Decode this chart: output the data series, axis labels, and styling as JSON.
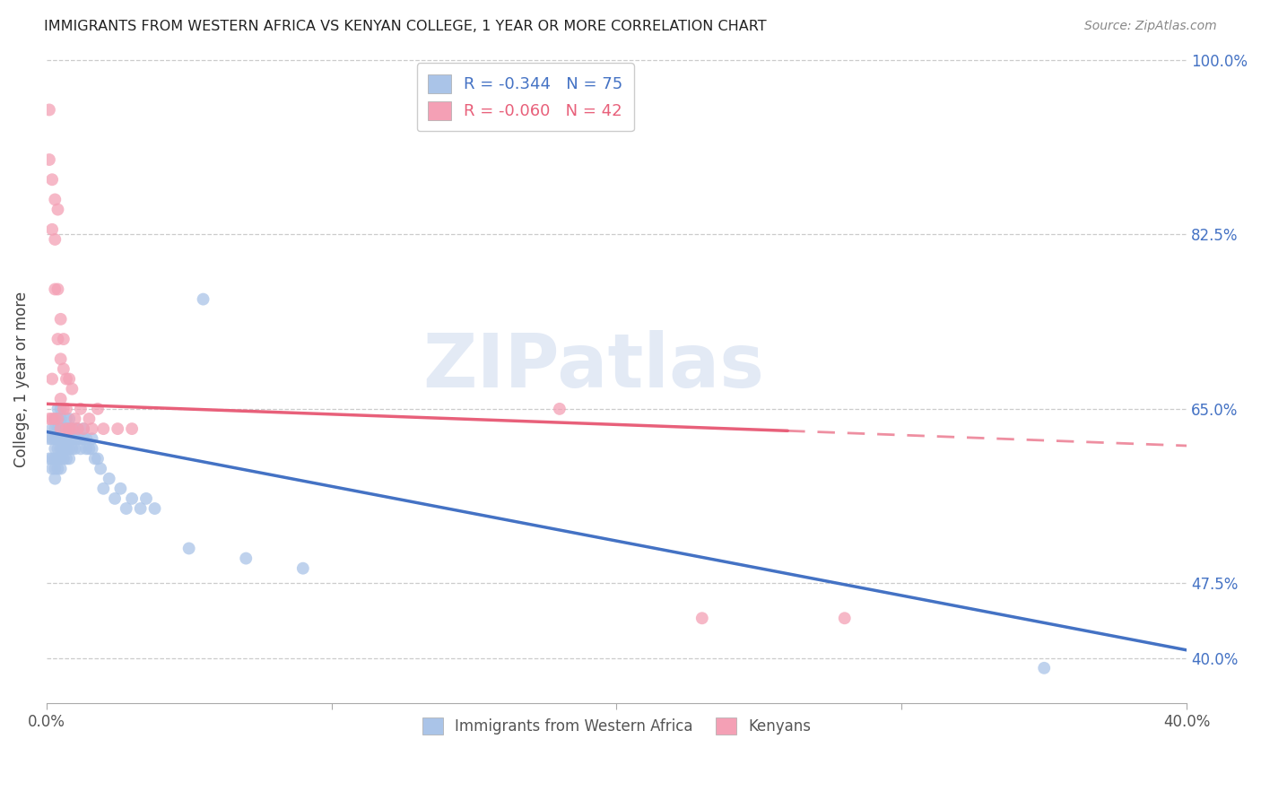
{
  "title": "IMMIGRANTS FROM WESTERN AFRICA VS KENYAN COLLEGE, 1 YEAR OR MORE CORRELATION CHART",
  "source": "Source: ZipAtlas.com",
  "ylabel": "College, 1 year or more",
  "xmin": 0.0,
  "xmax": 0.4,
  "ymin": 0.355,
  "ymax": 1.005,
  "blue_color": "#aac4e8",
  "pink_color": "#f4a0b5",
  "blue_line_color": "#4472c4",
  "pink_line_color": "#e8607a",
  "watermark": "ZIPatlas",
  "blue_scatter_x": [
    0.001,
    0.001,
    0.002,
    0.002,
    0.002,
    0.002,
    0.003,
    0.003,
    0.003,
    0.003,
    0.003,
    0.003,
    0.003,
    0.004,
    0.004,
    0.004,
    0.004,
    0.004,
    0.004,
    0.004,
    0.005,
    0.005,
    0.005,
    0.005,
    0.005,
    0.005,
    0.005,
    0.006,
    0.006,
    0.006,
    0.006,
    0.007,
    0.007,
    0.007,
    0.007,
    0.007,
    0.008,
    0.008,
    0.008,
    0.008,
    0.008,
    0.009,
    0.009,
    0.009,
    0.01,
    0.01,
    0.01,
    0.011,
    0.011,
    0.012,
    0.012,
    0.013,
    0.013,
    0.014,
    0.014,
    0.015,
    0.016,
    0.016,
    0.017,
    0.018,
    0.019,
    0.02,
    0.022,
    0.024,
    0.026,
    0.028,
    0.03,
    0.033,
    0.035,
    0.038,
    0.05,
    0.055,
    0.07,
    0.09,
    0.35
  ],
  "blue_scatter_y": [
    0.62,
    0.6,
    0.63,
    0.62,
    0.6,
    0.59,
    0.64,
    0.63,
    0.62,
    0.61,
    0.6,
    0.59,
    0.58,
    0.65,
    0.64,
    0.63,
    0.62,
    0.61,
    0.6,
    0.59,
    0.65,
    0.64,
    0.63,
    0.62,
    0.61,
    0.6,
    0.59,
    0.63,
    0.62,
    0.61,
    0.6,
    0.64,
    0.63,
    0.62,
    0.61,
    0.6,
    0.64,
    0.63,
    0.62,
    0.61,
    0.6,
    0.63,
    0.62,
    0.61,
    0.63,
    0.62,
    0.61,
    0.63,
    0.62,
    0.62,
    0.61,
    0.63,
    0.62,
    0.62,
    0.61,
    0.61,
    0.62,
    0.61,
    0.6,
    0.6,
    0.59,
    0.57,
    0.58,
    0.56,
    0.57,
    0.55,
    0.56,
    0.55,
    0.56,
    0.55,
    0.51,
    0.76,
    0.5,
    0.49,
    0.39
  ],
  "pink_scatter_x": [
    0.001,
    0.001,
    0.001,
    0.002,
    0.002,
    0.002,
    0.002,
    0.003,
    0.003,
    0.003,
    0.003,
    0.004,
    0.004,
    0.004,
    0.004,
    0.005,
    0.005,
    0.005,
    0.005,
    0.006,
    0.006,
    0.006,
    0.007,
    0.007,
    0.007,
    0.008,
    0.008,
    0.009,
    0.009,
    0.01,
    0.011,
    0.012,
    0.013,
    0.015,
    0.016,
    0.018,
    0.02,
    0.025,
    0.03,
    0.18,
    0.23,
    0.28
  ],
  "pink_scatter_y": [
    0.95,
    0.9,
    0.64,
    0.88,
    0.83,
    0.68,
    0.64,
    0.86,
    0.82,
    0.77,
    0.64,
    0.85,
    0.77,
    0.72,
    0.64,
    0.74,
    0.7,
    0.66,
    0.63,
    0.72,
    0.69,
    0.65,
    0.68,
    0.65,
    0.63,
    0.68,
    0.63,
    0.67,
    0.63,
    0.64,
    0.63,
    0.65,
    0.63,
    0.64,
    0.63,
    0.65,
    0.63,
    0.63,
    0.63,
    0.65,
    0.44,
    0.44
  ],
  "blue_line_x0": 0.0,
  "blue_line_x1": 0.4,
  "blue_line_y0": 0.627,
  "blue_line_y1": 0.408,
  "pink_line_x0": 0.0,
  "pink_line_x1": 0.26,
  "pink_line_x1_dash": 0.4,
  "pink_line_y0": 0.655,
  "pink_line_y1": 0.628,
  "pink_line_y1_dash": 0.613
}
